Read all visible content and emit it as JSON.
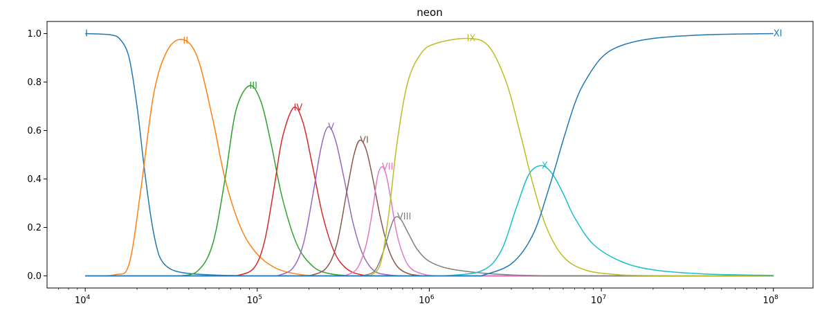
{
  "chart_data": {
    "type": "line",
    "title": "neon",
    "xlabel": "",
    "ylabel": "",
    "xscale": "log",
    "xlim": [
      6000,
      170000000
    ],
    "ylim": [
      -0.05,
      1.05
    ],
    "grid": false,
    "legend": "none (inline series labels)",
    "yticks": [
      {
        "value": 0.0,
        "label": "0.0"
      },
      {
        "value": 0.2,
        "label": "0.2"
      },
      {
        "value": 0.4,
        "label": "0.4"
      },
      {
        "value": 0.6,
        "label": "0.6"
      },
      {
        "value": 0.8,
        "label": "0.8"
      },
      {
        "value": 1.0,
        "label": "1.0"
      }
    ],
    "xticks": [
      {
        "value": 10000,
        "base": "10",
        "exp": "4"
      },
      {
        "value": 100000,
        "base": "10",
        "exp": "5"
      },
      {
        "value": 1000000,
        "base": "10",
        "exp": "6"
      },
      {
        "value": 10000000,
        "base": "10",
        "exp": "7"
      },
      {
        "value": 100000000,
        "base": "10",
        "exp": "8"
      }
    ],
    "series": [
      {
        "name": "I",
        "color": "#1f77b4",
        "label_x": 10000,
        "label_y": 1.0,
        "x": [
          10000,
          14000,
          16000,
          18000,
          20000,
          22000,
          24000,
          26000,
          28000,
          32000,
          40000,
          55000,
          80000,
          100000
        ],
        "y": [
          1.0,
          0.995,
          0.975,
          0.9,
          0.7,
          0.45,
          0.25,
          0.12,
          0.06,
          0.025,
          0.01,
          0.004,
          0.001,
          0.0
        ]
      },
      {
        "name": "II",
        "color": "#ff7f0e",
        "label_x": 37000,
        "label_y": 0.97,
        "x": [
          10000,
          15000,
          18000,
          21000,
          25000,
          30000,
          37000,
          45000,
          55000,
          65000,
          80000,
          100000,
          130000,
          180000,
          250000
        ],
        "y": [
          0.0,
          0.005,
          0.05,
          0.35,
          0.75,
          0.93,
          0.975,
          0.9,
          0.65,
          0.4,
          0.2,
          0.09,
          0.03,
          0.005,
          0.0
        ]
      },
      {
        "name": "III",
        "color": "#2ca02c",
        "label_x": 90000,
        "label_y": 0.785,
        "x": [
          35000,
          45000,
          55000,
          65000,
          75000,
          90000,
          105000,
          120000,
          140000,
          170000,
          210000,
          260000,
          350000
        ],
        "y": [
          0.0,
          0.02,
          0.13,
          0.4,
          0.68,
          0.785,
          0.72,
          0.55,
          0.32,
          0.13,
          0.04,
          0.01,
          0.0
        ]
      },
      {
        "name": "IV",
        "color": "#d62728",
        "label_x": 163000,
        "label_y": 0.695,
        "x": [
          75000,
          95000,
          110000,
          125000,
          140000,
          163000,
          185000,
          210000,
          240000,
          280000,
          330000,
          400000,
          500000
        ],
        "y": [
          0.0,
          0.03,
          0.14,
          0.36,
          0.57,
          0.695,
          0.63,
          0.45,
          0.25,
          0.1,
          0.03,
          0.005,
          0.0
        ]
      },
      {
        "name": "V",
        "color": "#9467bd",
        "label_x": 258000,
        "label_y": 0.615,
        "x": [
          130000,
          160000,
          185000,
          210000,
          235000,
          258000,
          285000,
          320000,
          360000,
          410000,
          480000,
          600000,
          750000
        ],
        "y": [
          0.0,
          0.03,
          0.13,
          0.33,
          0.53,
          0.615,
          0.56,
          0.4,
          0.22,
          0.09,
          0.02,
          0.003,
          0.0
        ]
      },
      {
        "name": "VI",
        "color": "#8c564b",
        "label_x": 395000,
        "label_y": 0.56,
        "x": [
          200000,
          250000,
          290000,
          330000,
          365000,
          395000,
          430000,
          470000,
          520000,
          580000,
          650000,
          750000,
          900000
        ],
        "y": [
          0.0,
          0.03,
          0.13,
          0.34,
          0.5,
          0.56,
          0.52,
          0.4,
          0.24,
          0.11,
          0.04,
          0.01,
          0.0
        ]
      },
      {
        "name": "VII",
        "color": "#e377c2",
        "label_x": 530000,
        "label_y": 0.45,
        "x": [
          320000,
          380000,
          430000,
          470000,
          500000,
          530000,
          560000,
          600000,
          650000,
          720000,
          800000,
          950000,
          1100000
        ],
        "y": [
          0.0,
          0.03,
          0.13,
          0.28,
          0.41,
          0.45,
          0.42,
          0.31,
          0.17,
          0.07,
          0.025,
          0.005,
          0.0
        ]
      },
      {
        "name": "VIII",
        "color": "#7f7f7f",
        "label_x": 650000,
        "label_y": 0.245,
        "x": [
          400000,
          480000,
          540000,
          590000,
          630000,
          680000,
          750000,
          850000,
          1000000,
          1300000,
          2000000,
          3000000,
          5000000
        ],
        "y": [
          0.0,
          0.02,
          0.1,
          0.19,
          0.24,
          0.235,
          0.18,
          0.11,
          0.06,
          0.03,
          0.012,
          0.004,
          0.0
        ]
      },
      {
        "name": "IX",
        "color": "#bcbd22",
        "label_x": 1650000,
        "label_y": 0.98,
        "x": [
          450000,
          520000,
          580000,
          650000,
          750000,
          900000,
          1100000,
          1650000,
          2200000,
          2800000,
          3400000,
          4000000,
          4800000,
          6000000,
          8000000,
          12000000,
          20000000,
          100000000
        ],
        "y": [
          0.0,
          0.05,
          0.25,
          0.55,
          0.8,
          0.92,
          0.96,
          0.98,
          0.95,
          0.8,
          0.58,
          0.38,
          0.2,
          0.08,
          0.025,
          0.006,
          0.001,
          0.0
        ]
      },
      {
        "name": "X",
        "color": "#17becf",
        "label_x": 4500000,
        "label_y": 0.455,
        "x": [
          1200000,
          2000000,
          2600000,
          3200000,
          3800000,
          4500000,
          5200000,
          6000000,
          7000000,
          9000000,
          13000000,
          20000000,
          40000000,
          100000000
        ],
        "y": [
          0.0,
          0.02,
          0.1,
          0.28,
          0.42,
          0.455,
          0.42,
          0.34,
          0.24,
          0.13,
          0.06,
          0.025,
          0.008,
          0.002
        ]
      },
      {
        "name": "XI",
        "color": "#1f77b4",
        "label_x": 100000000,
        "label_y": 1.0,
        "x": [
          2000000,
          3000000,
          4000000,
          5000000,
          6000000,
          7000000,
          8000000,
          10000000,
          13000000,
          20000000,
          40000000,
          100000000
        ],
        "y": [
          0.0,
          0.05,
          0.17,
          0.37,
          0.56,
          0.71,
          0.8,
          0.9,
          0.95,
          0.98,
          0.995,
          1.0
        ]
      }
    ]
  }
}
